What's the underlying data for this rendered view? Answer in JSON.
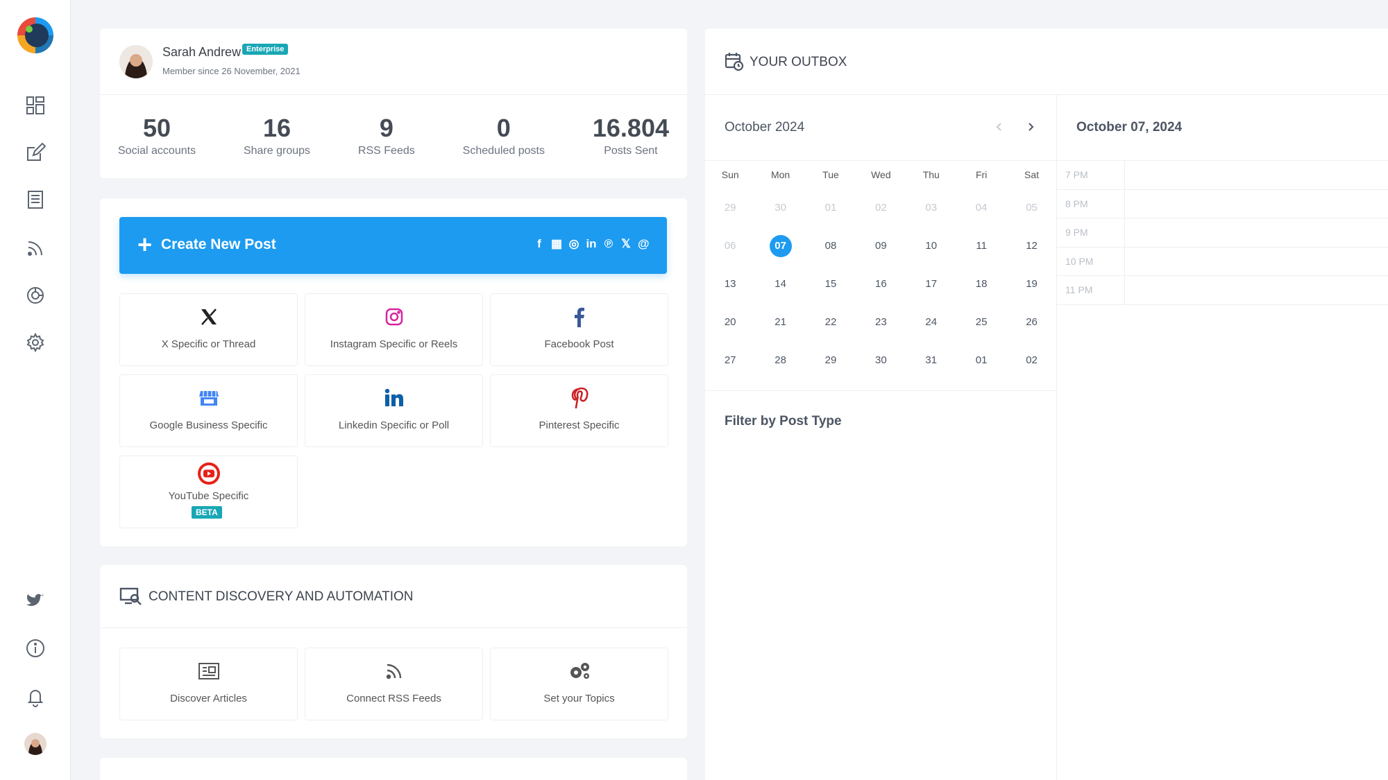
{
  "sidebar": {
    "icons": [
      "dashboard-icon",
      "compose-icon",
      "articles-icon",
      "rss-icon",
      "analytics-icon",
      "settings-icon",
      "twitter-icon",
      "info-icon",
      "bell-icon",
      "avatar"
    ]
  },
  "profile": {
    "name": "Sarah Andrew",
    "badge": "Enterprise",
    "member_since": "Member since 26 November, 2021",
    "stats": [
      {
        "value": "50",
        "label": "Social accounts"
      },
      {
        "value": "16",
        "label": "Share groups"
      },
      {
        "value": "9",
        "label": "RSS Feeds"
      },
      {
        "value": "0",
        "label": "Scheduled posts"
      },
      {
        "value": "16.804",
        "label": "Posts Sent"
      }
    ]
  },
  "create": {
    "button_label": "Create New Post",
    "plus": "+",
    "mini_icons": [
      "f",
      "▦",
      "◎",
      "in",
      "℗",
      "𝕏",
      "@"
    ],
    "tiles": [
      {
        "label": "X Specific or Thread",
        "icon": "x-icon"
      },
      {
        "label": "Instagram Specific or Reels",
        "icon": "instagram-icon"
      },
      {
        "label": "Facebook Post",
        "icon": "facebook-icon"
      },
      {
        "label": "Google Business Specific",
        "icon": "google-business-icon"
      },
      {
        "label": "Linkedin Specific or Poll",
        "icon": "linkedin-icon"
      },
      {
        "label": "Pinterest Specific",
        "icon": "pinterest-icon"
      },
      {
        "label": "YouTube Specific",
        "icon": "youtube-icon",
        "badge": "BETA"
      }
    ]
  },
  "discovery": {
    "title": "CONTENT DISCOVERY AND AUTOMATION",
    "tiles": [
      {
        "label": "Discover Articles",
        "icon": "newspaper-icon"
      },
      {
        "label": "Connect RSS Feeds",
        "icon": "rss-icon"
      },
      {
        "label": "Set your Topics",
        "icon": "gears-icon"
      }
    ]
  },
  "outbox": {
    "title": "YOUR OUTBOX",
    "month": "October 2024",
    "weekdays": [
      "Sun",
      "Mon",
      "Tue",
      "Wed",
      "Thu",
      "Fri",
      "Sat"
    ],
    "weeks": [
      [
        "29",
        "30",
        "01",
        "02",
        "03",
        "04",
        "05"
      ],
      [
        "06",
        "07",
        "08",
        "09",
        "10",
        "11",
        "12"
      ],
      [
        "13",
        "14",
        "15",
        "16",
        "17",
        "18",
        "19"
      ],
      [
        "20",
        "21",
        "22",
        "23",
        "24",
        "25",
        "26"
      ],
      [
        "27",
        "28",
        "29",
        "30",
        "31",
        "01",
        "02"
      ]
    ],
    "muted_days": [
      "0-0",
      "0-1",
      "0-2",
      "0-3",
      "0-4",
      "0-5",
      "0-6",
      "1-0"
    ],
    "selected_day": "07",
    "filter_title": "Filter by Post Type",
    "day_title": "October 07, 2024",
    "hours": [
      "7 PM",
      "8 PM",
      "9 PM",
      "10 PM",
      "11 PM"
    ]
  },
  "colors": {
    "accent": "#1d9bf0",
    "badge": "#19a7b5",
    "background": "#f2f4f7"
  }
}
